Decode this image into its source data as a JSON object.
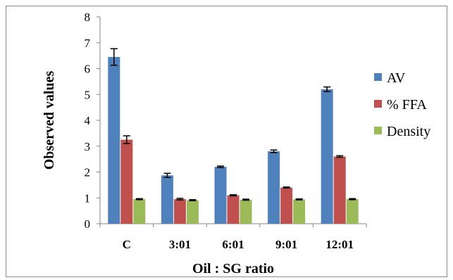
{
  "chart_data": {
    "type": "bar",
    "title": "",
    "xlabel": "Oil : SG ratio",
    "ylabel": "Observed values",
    "ylim": [
      0,
      8
    ],
    "yticks": [
      0,
      1,
      2,
      3,
      4,
      5,
      6,
      7,
      8
    ],
    "grid": false,
    "legend_position": "right",
    "categories": [
      "C",
      "3:01",
      "6:01",
      "9:01",
      "12:01"
    ],
    "series": [
      {
        "name": "AV",
        "color": "#4F81BD",
        "values": [
          6.45,
          1.87,
          2.2,
          2.8,
          5.2
        ],
        "errors": [
          0.32,
          0.08,
          0.03,
          0.05,
          0.09
        ]
      },
      {
        "name": "% FFA",
        "color": "#C0504D",
        "values": [
          3.25,
          0.95,
          1.1,
          1.4,
          2.6
        ],
        "errors": [
          0.15,
          0.03,
          0.02,
          0.02,
          0.03
        ]
      },
      {
        "name": "Density",
        "color": "#9BBB59",
        "values": [
          0.95,
          0.91,
          0.93,
          0.94,
          0.95
        ],
        "errors": [
          0.02,
          0.02,
          0.02,
          0.02,
          0.02
        ]
      }
    ]
  }
}
